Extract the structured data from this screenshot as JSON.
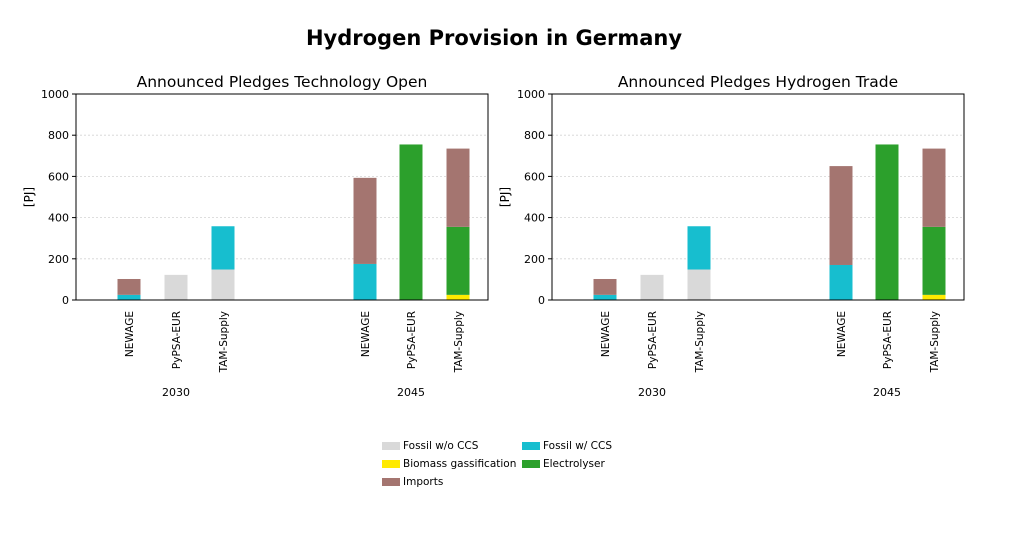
{
  "figure": {
    "title": "Hydrogen Provision in Germany"
  },
  "chart_data": [
    {
      "type": "bar",
      "stacked": true,
      "title": "Announced Pledges Technology Open",
      "ylabel": "[PJ]",
      "ylim": [
        0,
        1000
      ],
      "yticks": [
        "0",
        "200",
        "400",
        "600",
        "800",
        "1000"
      ],
      "grid": true,
      "groups": [
        {
          "label": "2030",
          "categories": [
            "NEWAGE",
            "PyPSA-EUR",
            "TAM-Supply"
          ]
        },
        {
          "label": "2045",
          "categories": [
            "NEWAGE",
            "PyPSA-EUR",
            "TAM-Supply"
          ]
        }
      ],
      "series": [
        {
          "name": "Fossil w/o CCS",
          "color": "#d9d9d9",
          "values": [
            0,
            122,
            148,
            0,
            0,
            0
          ]
        },
        {
          "name": "Fossil w/ CCS",
          "color": "#17becf",
          "values": [
            25,
            0,
            210,
            175,
            0,
            0
          ]
        },
        {
          "name": "Biomass gassification",
          "color": "#ffea00",
          "values": [
            0,
            0,
            0,
            0,
            0,
            25
          ]
        },
        {
          "name": "Electrolyser",
          "color": "#2ca02c",
          "values": [
            0,
            0,
            0,
            0,
            755,
            330
          ]
        },
        {
          "name": "Imports",
          "color": "#a47570",
          "values": [
            77,
            0,
            0,
            418,
            0,
            380
          ]
        }
      ]
    },
    {
      "type": "bar",
      "stacked": true,
      "title": "Announced Pledges Hydrogen Trade",
      "ylabel": "[PJ]",
      "ylim": [
        0,
        1000
      ],
      "yticks": [
        "0",
        "200",
        "400",
        "600",
        "800",
        "1000"
      ],
      "grid": true,
      "groups": [
        {
          "label": "2030",
          "categories": [
            "NEWAGE",
            "PyPSA-EUR",
            "TAM-Supply"
          ]
        },
        {
          "label": "2045",
          "categories": [
            "NEWAGE",
            "PyPSA-EUR",
            "TAM-Supply"
          ]
        }
      ],
      "series": [
        {
          "name": "Fossil w/o CCS",
          "color": "#d9d9d9",
          "values": [
            0,
            122,
            148,
            0,
            0,
            0
          ]
        },
        {
          "name": "Fossil w/ CCS",
          "color": "#17becf",
          "values": [
            25,
            0,
            210,
            170,
            0,
            0
          ]
        },
        {
          "name": "Biomass gassification",
          "color": "#ffea00",
          "values": [
            0,
            0,
            0,
            0,
            0,
            25
          ]
        },
        {
          "name": "Electrolyser",
          "color": "#2ca02c",
          "values": [
            0,
            0,
            0,
            0,
            755,
            330
          ]
        },
        {
          "name": "Imports",
          "color": "#a47570",
          "values": [
            77,
            0,
            0,
            480,
            0,
            380
          ]
        }
      ]
    }
  ],
  "legend": {
    "entries": [
      {
        "label": "Fossil w/o CCS",
        "color": "#d9d9d9"
      },
      {
        "label": "Fossil w/ CCS",
        "color": "#17becf"
      },
      {
        "label": "Biomass gassification",
        "color": "#ffea00"
      },
      {
        "label": "Electrolyser",
        "color": "#2ca02c"
      },
      {
        "label": "Imports",
        "color": "#a47570"
      }
    ]
  }
}
